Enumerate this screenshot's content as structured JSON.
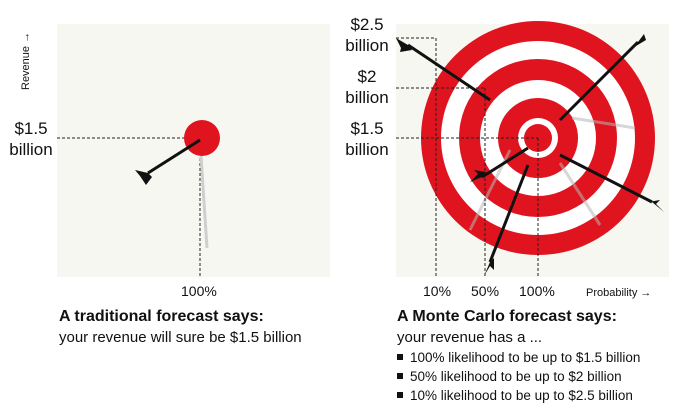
{
  "left_panel": {
    "y_axis_title": "Revenue →",
    "y_label": "$1.5\nbillion",
    "x_label": "100%",
    "heading": "A traditional forecast says:",
    "subtext": "your revenue will sure be $1.5 billion"
  },
  "right_panel": {
    "y_labels": [
      "$2.5\nbillion",
      "$2\nbillion",
      "$1.5\nbillion"
    ],
    "x_labels": [
      "10%",
      "50%",
      "100%"
    ],
    "x_axis_title": "Probability →",
    "heading": "A Monte Carlo forecast says:",
    "subtext": "your revenue has a ...",
    "bullets": [
      "100% likelihood to be up to $1.5 billion",
      "50% likelihood to be up to $2 billion",
      "10% likelihood to be up to $2.5 billion"
    ]
  },
  "colors": {
    "target_red": "#e0141e",
    "panel_bg": "#f7f7f2",
    "arrow": "#111111"
  }
}
